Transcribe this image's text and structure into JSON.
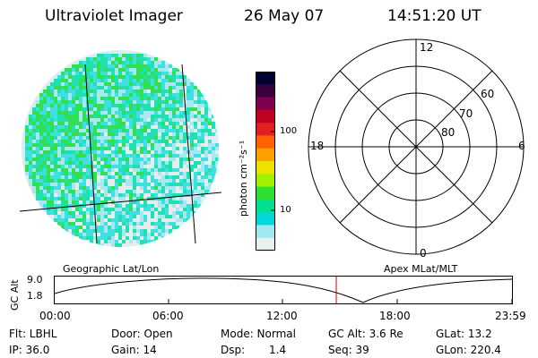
{
  "header": {
    "instrument": "Ultraviolet Imager",
    "date": "26 May 07",
    "time": "14:51:20 UT"
  },
  "colorbar": {
    "unit_label": "photon cm⁻²s⁻¹",
    "ticks": [
      "100",
      "10"
    ],
    "scale": "log",
    "colors": [
      "#000033",
      "#3a0040",
      "#800050",
      "#c00020",
      "#e02020",
      "#ff6000",
      "#ffa000",
      "#f0e000",
      "#a0f000",
      "#30e030",
      "#00e090",
      "#00d8d8",
      "#a0e8f0",
      "#e8f0f0"
    ]
  },
  "polar_plot": {
    "mlt_labels": [
      "12",
      "18",
      "6",
      "0"
    ],
    "mlat_labels": [
      "60",
      "70",
      "80"
    ]
  },
  "orbit_panel": {
    "ylabel": "GC Alt",
    "y_ticks": [
      "9.0",
      "1.8"
    ],
    "left_label": "Geographic Lat/Lon",
    "right_label": "Apex MLat/MLT",
    "x_ticks": [
      "00:00",
      "06:00",
      "12:00",
      "18:00",
      "23:59"
    ],
    "current_time_marker": "14:51:20",
    "marker_color": "#c00000"
  },
  "info": {
    "filter": "Flt: LBHL",
    "ip": "IP: 36.0",
    "door": "Door: Open",
    "gain": "Gain: 14",
    "mode": "Mode: Normal",
    "dsp_label": "Dsp:",
    "dsp_value": "1.4",
    "gc_alt": "GC Alt: 3.6 Re",
    "seq": "Seq: 39",
    "glat": "GLat: 13.2",
    "glon": "GLon: 220.4"
  }
}
